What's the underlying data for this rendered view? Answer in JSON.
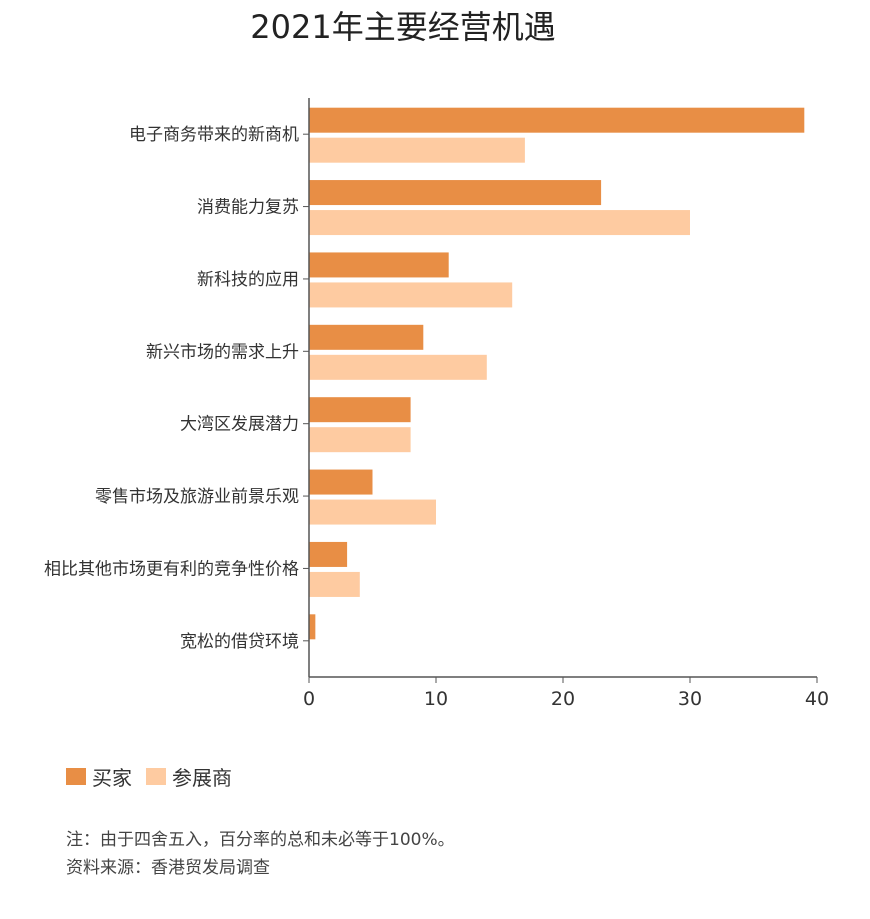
{
  "chart_data": {
    "type": "bar",
    "orientation": "horizontal",
    "title": "2021年主要经营机遇",
    "categories": [
      "电子商务带来的新商机",
      "消费能力复苏",
      "新科技的应用",
      "新兴市场的需求上升",
      "大湾区发展潜力",
      "零售市场及旅游业前景乐观",
      "相比其他市场更有利的竞争性价格",
      "宽松的借贷环境"
    ],
    "series": [
      {
        "name": "买家",
        "color": "#E88E45",
        "values": [
          39,
          23,
          11,
          9,
          8,
          5,
          3,
          0.5
        ]
      },
      {
        "name": "参展商",
        "color": "#FECBA1",
        "values": [
          17,
          30,
          16,
          14,
          8,
          10,
          4,
          0
        ]
      }
    ],
    "xlim": [
      0,
      40
    ],
    "xticks": [
      "0",
      "10",
      "20",
      "30",
      "40"
    ],
    "grid": false,
    "legend_position": "bottom-left"
  },
  "notes": {
    "line1": "注：由于四舍五入，百分率的总和未必等于100%。",
    "line2": "资料来源：香港贸发局调查"
  }
}
